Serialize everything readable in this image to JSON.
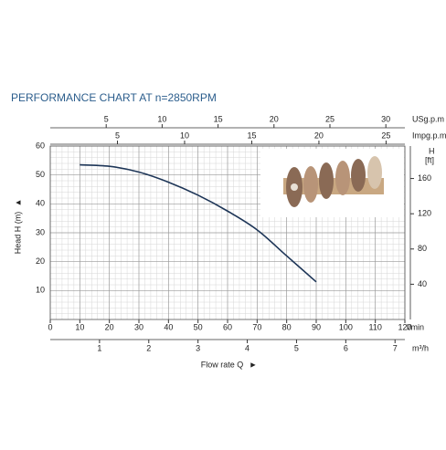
{
  "chart_data": {
    "type": "line",
    "title": "PERFORMANCE CHART AT n=2850RPM",
    "x_label": "Flow rate Q",
    "y_label": "Head H (m)",
    "x_unit": "l/min",
    "xlim": [
      0,
      120
    ],
    "xticks": [
      0,
      10,
      20,
      30,
      40,
      50,
      60,
      70,
      80,
      90,
      100,
      110,
      120
    ],
    "ylim": [
      0,
      60
    ],
    "yticks": [
      10,
      20,
      30,
      40,
      50,
      60
    ],
    "grid": true,
    "bottom_axes": [
      {
        "label": "m³/h",
        "lim": [
          0,
          7.2
        ],
        "ticks": [
          1,
          2,
          3,
          4,
          5,
          6,
          7
        ]
      }
    ],
    "top_axes": [
      {
        "label": "USg.p.m",
        "lim": [
          0,
          31.7
        ],
        "ticks": [
          5,
          10,
          15,
          20,
          25,
          30
        ]
      },
      {
        "label": "Impg.p.m",
        "lim": [
          0,
          26.4
        ],
        "ticks": [
          5,
          10,
          15,
          20,
          25
        ]
      }
    ],
    "right_axis": {
      "label": "H",
      "unit": "[ft]",
      "lim": [
        0,
        196.85
      ],
      "ticks": [
        40,
        80,
        120,
        160
      ]
    },
    "series": [
      {
        "name": "Head",
        "color": "#1d3557",
        "x": [
          10,
          20,
          30,
          40,
          50,
          60,
          70,
          80,
          90
        ],
        "values": [
          53.5,
          53,
          51,
          47.5,
          43,
          37.5,
          31,
          22,
          13
        ]
      }
    ]
  }
}
